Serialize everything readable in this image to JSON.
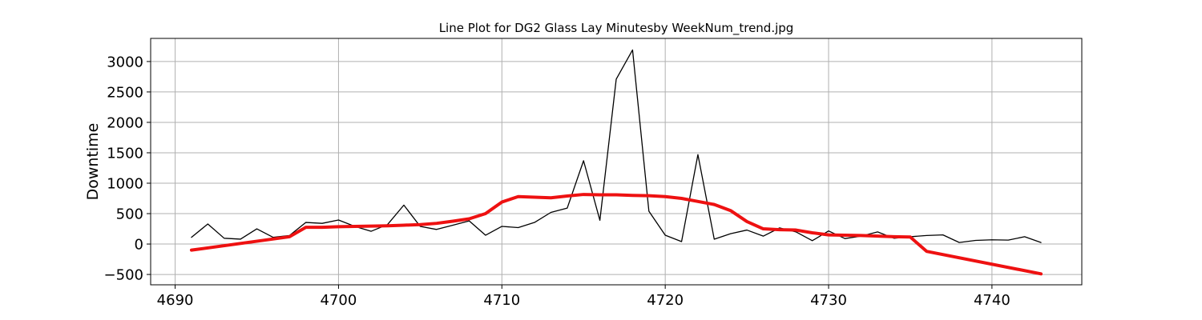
{
  "chart_data": {
    "type": "line",
    "title": "Line Plot for DG2 Glass Lay Minutesby WeekNum_trend.jpg",
    "xlabel": "",
    "ylabel": "Downtime",
    "xlim": [
      4688.5,
      4745.5
    ],
    "ylim": [
      -670,
      3380
    ],
    "xticks": [
      4690,
      4700,
      4710,
      4720,
      4730,
      4740
    ],
    "yticks": [
      -500,
      0,
      500,
      1000,
      1500,
      2000,
      2500,
      3000
    ],
    "grid": true,
    "legend": "none",
    "series": [
      {
        "color": "#000000",
        "x": [
          4691,
          4692,
          4693,
          4694,
          4695,
          4696,
          4697,
          4698,
          4699,
          4700,
          4701,
          4702,
          4703,
          4704,
          4705,
          4706,
          4707,
          4708,
          4709,
          4710,
          4711,
          4712,
          4713,
          4714,
          4715,
          4716,
          4717,
          4718,
          4719,
          4720,
          4721,
          4722,
          4723,
          4724,
          4725,
          4726,
          4727,
          4728,
          4729,
          4730,
          4731,
          4732,
          4733,
          4734,
          4735,
          4736,
          4737,
          4738,
          4739,
          4740,
          4741,
          4742,
          4743
        ],
        "y": [
          110,
          330,
          95,
          80,
          250,
          110,
          140,
          355,
          340,
          395,
          290,
          210,
          320,
          640,
          290,
          240,
          310,
          380,
          145,
          290,
          270,
          355,
          520,
          590,
          1370,
          390,
          2710,
          3190,
          540,
          145,
          40,
          1470,
          80,
          170,
          230,
          130,
          265,
          200,
          55,
          215,
          90,
          130,
          200,
          95,
          120,
          140,
          150,
          25,
          60,
          70,
          65,
          120,
          25
        ]
      },
      {
        "color": "#ee1111",
        "x": [
          4691,
          4697,
          4698,
          4699,
          4700,
          4701,
          4702,
          4703,
          4704,
          4705,
          4706,
          4707,
          4708,
          4709,
          4710,
          4711,
          4712,
          4713,
          4714,
          4715,
          4716,
          4717,
          4718,
          4719,
          4720,
          4721,
          4722,
          4723,
          4724,
          4725,
          4726,
          4727,
          4728,
          4729,
          4730,
          4731,
          4732,
          4733,
          4734,
          4735,
          4736,
          4743
        ],
        "y": [
          -100,
          120,
          275,
          275,
          285,
          290,
          295,
          300,
          310,
          320,
          340,
          375,
          415,
          500,
          690,
          780,
          770,
          760,
          790,
          815,
          810,
          810,
          800,
          795,
          780,
          750,
          700,
          650,
          550,
          370,
          250,
          235,
          230,
          185,
          150,
          145,
          140,
          130,
          120,
          115,
          -120,
          -490
        ]
      }
    ]
  }
}
